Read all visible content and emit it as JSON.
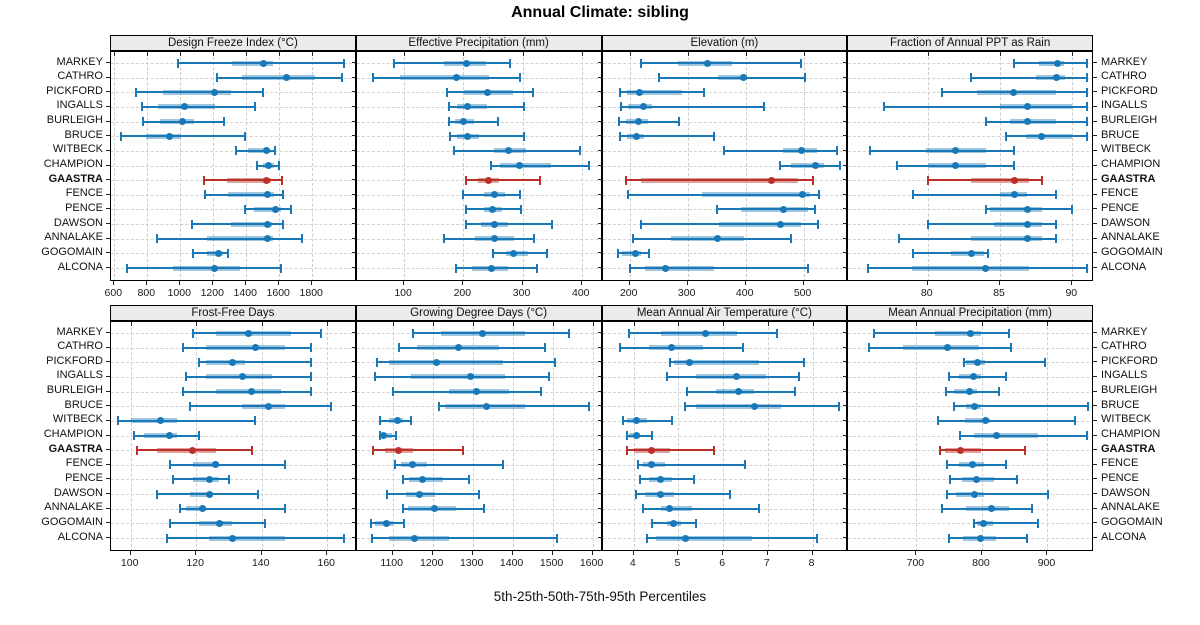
{
  "title": "Annual Climate: sibling",
  "caption": "5th-25th-50th-75th-95th Percentiles",
  "colors": {
    "series": "#1878b8",
    "series_band": "rgba(24,120,184,0.42)",
    "highlight": "#bb3029",
    "highlight_band": "rgba(187,48,41,0.45)",
    "strip_bg": "#ebebeb",
    "grid": "#cdcdcd"
  },
  "chart_data": {
    "type": "percentile-dotplot",
    "percentiles": [
      5,
      25,
      50,
      75,
      95
    ],
    "legend_position": "none",
    "grid": "on",
    "stations": [
      "MARKEY",
      "CATHRO",
      "PICKFORD",
      "INGALLS",
      "BURLEIGH",
      "BRUCE",
      "WITBECK",
      "CHAMPION",
      "GAASTRA",
      "FENCE",
      "PENCE",
      "DAWSON",
      "ANNALAKE",
      "GOGOMAIN",
      "ALCONA"
    ],
    "highlight_station": "GAASTRA",
    "panels": [
      {
        "title": "Design Freeze Index (°C)",
        "xlim": [
          580,
          2070
        ],
        "ticks": [
          600,
          800,
          1000,
          1200,
          1400,
          1600,
          1800
        ],
        "values": {
          "MARKEY": [
            985,
            1315,
            1505,
            1560,
            1990
          ],
          "CATHRO": [
            1220,
            1375,
            1645,
            1815,
            1980
          ],
          "PICKFORD": [
            730,
            895,
            1210,
            1305,
            1500
          ],
          "INGALLS": [
            765,
            865,
            1025,
            1210,
            1455
          ],
          "BURLEIGH": [
            775,
            875,
            1015,
            1085,
            1265
          ],
          "BRUCE": [
            640,
            790,
            935,
            1005,
            1390
          ],
          "WITBECK": [
            1340,
            1410,
            1520,
            1545,
            1575
          ],
          "CHAMPION": [
            1465,
            1500,
            1535,
            1570,
            1600
          ],
          "GAASTRA": [
            1145,
            1285,
            1520,
            1550,
            1615
          ],
          "FENCE": [
            1150,
            1290,
            1530,
            1570,
            1620
          ],
          "PENCE": [
            1390,
            1445,
            1575,
            1610,
            1670
          ],
          "DAWSON": [
            1070,
            1310,
            1530,
            1555,
            1620
          ],
          "ANNALAKE": [
            860,
            1165,
            1530,
            1565,
            1740
          ],
          "GOGOMAIN": [
            1080,
            1165,
            1230,
            1260,
            1290
          ],
          "ALCONA": [
            680,
            955,
            1210,
            1365,
            1610
          ]
        }
      },
      {
        "title": "Effective Precipitation (mm)",
        "xlim": [
          20,
          435
        ],
        "ticks": [
          100,
          200,
          300,
          400
        ],
        "values": {
          "MARKEY": [
            83,
            167,
            205,
            239,
            279
          ],
          "CATHRO": [
            47,
            93,
            188,
            243,
            296
          ],
          "PICKFORD": [
            172,
            201,
            241,
            284,
            318
          ],
          "INGALLS": [
            175,
            190,
            207,
            240,
            302
          ],
          "BURLEIGH": [
            175,
            186,
            200,
            218,
            258
          ],
          "BRUCE": [
            177,
            190,
            207,
            226,
            302
          ],
          "WITBECK": [
            184,
            251,
            276,
            306,
            397
          ],
          "CHAMPION": [
            247,
            262,
            294,
            348,
            413
          ],
          "GAASTRA": [
            205,
            225,
            243,
            260,
            330
          ],
          "FENCE": [
            200,
            235,
            252,
            270,
            295
          ],
          "PENCE": [
            205,
            235,
            250,
            265,
            298
          ],
          "DAWSON": [
            205,
            230,
            252,
            275,
            350
          ],
          "ANNALAKE": [
            168,
            220,
            252,
            285,
            320
          ],
          "GOGOMAIN": [
            250,
            272,
            285,
            310,
            342
          ],
          "ALCONA": [
            188,
            215,
            247,
            275,
            325
          ]
        }
      },
      {
        "title": "Elevation (m)",
        "xlim": [
          153,
          577
        ],
        "ticks": [
          200,
          300,
          400,
          500
        ],
        "values": {
          "MARKEY": [
            219,
            284,
            334,
            376,
            495
          ],
          "CATHRO": [
            251,
            352,
            396,
            403,
            503
          ],
          "PICKFORD": [
            184,
            195,
            216,
            290,
            328
          ],
          "INGALLS": [
            185,
            197,
            223,
            238,
            431
          ],
          "BURLEIGH": [
            181,
            194,
            215,
            232,
            285
          ],
          "BRUCE": [
            184,
            195,
            212,
            224,
            345
          ],
          "WITBECK": [
            362,
            465,
            497,
            523,
            558
          ],
          "CHAMPION": [
            459,
            479,
            520,
            536,
            562
          ],
          "GAASTRA": [
            193,
            219,
            444,
            491,
            517
          ],
          "FENCE": [
            197,
            325,
            498,
            511,
            526
          ],
          "PENCE": [
            350,
            392,
            466,
            507,
            520
          ],
          "DAWSON": [
            219,
            354,
            460,
            495,
            524
          ],
          "ANNALAKE": [
            205,
            271,
            352,
            398,
            478
          ],
          "GOGOMAIN": [
            180,
            187,
            210,
            220,
            234
          ],
          "ALCONA": [
            201,
            226,
            261,
            345,
            508
          ]
        }
      },
      {
        "title": "Fraction of Annual PPT as Rain",
        "xlim": [
          74.5,
          91.5
        ],
        "ticks": [
          80,
          85,
          90
        ],
        "values": {
          "MARKEY": [
            86,
            87.7,
            89,
            89.4,
            91
          ],
          "CATHRO": [
            83,
            87.5,
            88.9,
            89.5,
            91
          ],
          "PICKFORD": [
            81,
            83.4,
            85.9,
            88.9,
            91
          ],
          "INGALLS": [
            77,
            85,
            86.9,
            90,
            91
          ],
          "BURLEIGH": [
            84,
            85.7,
            86.9,
            88.9,
            91
          ],
          "BRUCE": [
            85.4,
            86.8,
            87.9,
            90,
            91
          ],
          "WITBECK": [
            76,
            79.9,
            81.9,
            84,
            86
          ],
          "CHAMPION": [
            77.9,
            80,
            81.9,
            84,
            86
          ],
          "GAASTRA": [
            80,
            83,
            86,
            87,
            87.9
          ],
          "FENCE": [
            79,
            85,
            86,
            86.9,
            88.9
          ],
          "PENCE": [
            84,
            84.3,
            86.9,
            87.9,
            90
          ],
          "DAWSON": [
            80,
            84.6,
            86.9,
            87.9,
            88.9
          ],
          "ANNALAKE": [
            78,
            83,
            86.9,
            87.9,
            88.9
          ],
          "GOGOMAIN": [
            79,
            81.6,
            83,
            83.9,
            84.2
          ],
          "ALCONA": [
            75.9,
            78.9,
            84,
            87,
            91
          ]
        }
      },
      {
        "title": "Frost-Free Days",
        "xlim": [
          94,
          169
        ],
        "ticks": [
          100,
          120,
          140,
          160
        ],
        "values": {
          "MARKEY": [
            119,
            126,
            136,
            149,
            158
          ],
          "CATHRO": [
            116,
            123,
            138,
            147,
            155
          ],
          "PICKFORD": [
            121,
            123,
            131,
            135,
            155
          ],
          "INGALLS": [
            117,
            123,
            134,
            143,
            155
          ],
          "BURLEIGH": [
            116,
            126,
            137,
            146,
            155
          ],
          "BRUCE": [
            118,
            134,
            142,
            147,
            161
          ],
          "WITBECK": [
            96,
            100,
            109,
            114,
            138
          ],
          "CHAMPION": [
            101,
            104,
            112,
            114,
            121
          ],
          "GAASTRA": [
            102,
            108,
            119,
            126,
            137
          ],
          "FENCE": [
            112,
            119,
            126,
            127,
            147
          ],
          "PENCE": [
            113,
            119,
            124,
            127,
            130
          ],
          "DAWSON": [
            108,
            118,
            124,
            125,
            139
          ],
          "ANNALAKE": [
            115,
            117,
            122,
            123,
            147
          ],
          "GOGOMAIN": [
            112,
            121,
            127,
            131,
            141
          ],
          "ALCONA": [
            111,
            124,
            131,
            147,
            165
          ]
        }
      },
      {
        "title": "Growing Degree Days (°C)",
        "xlim": [
          1010,
          1625
        ],
        "ticks": [
          1100,
          1200,
          1300,
          1400,
          1500,
          1600
        ],
        "values": {
          "MARKEY": [
            1150,
            1220,
            1325,
            1430,
            1540
          ],
          "CATHRO": [
            1115,
            1160,
            1265,
            1365,
            1480
          ],
          "PICKFORD": [
            1060,
            1090,
            1210,
            1375,
            1505
          ],
          "INGALLS": [
            1055,
            1145,
            1295,
            1380,
            1490
          ],
          "BURLEIGH": [
            1100,
            1240,
            1310,
            1390,
            1470
          ],
          "BRUCE": [
            1215,
            1230,
            1335,
            1430,
            1590
          ],
          "WITBECK": [
            1068,
            1090,
            1113,
            1125,
            1147
          ],
          "CHAMPION": [
            1067,
            1072,
            1078,
            1097,
            1108
          ],
          "GAASTRA": [
            1050,
            1080,
            1114,
            1150,
            1275
          ],
          "FENCE": [
            1105,
            1120,
            1150,
            1185,
            1375
          ],
          "PENCE": [
            1125,
            1140,
            1175,
            1225,
            1290
          ],
          "DAWSON": [
            1085,
            1133,
            1167,
            1207,
            1315
          ],
          "ANNALAKE": [
            1126,
            1139,
            1205,
            1258,
            1328
          ],
          "GOGOMAIN": [
            1045,
            1056,
            1084,
            1100,
            1128
          ],
          "ALCONA": [
            1048,
            1090,
            1155,
            1242,
            1510
          ]
        }
      },
      {
        "title": "Mean Annual Air Temperature (°C)",
        "xlim": [
          3.3,
          8.8
        ],
        "ticks": [
          4,
          5,
          6,
          7,
          8
        ],
        "values": {
          "MARKEY": [
            3.9,
            4.6,
            5.6,
            6.3,
            7.2
          ],
          "CATHRO": [
            3.7,
            4.35,
            4.85,
            5.55,
            6.45
          ],
          "PICKFORD": [
            4.8,
            4.9,
            5.25,
            6.8,
            7.8
          ],
          "INGALLS": [
            4.75,
            5.4,
            6.3,
            6.95,
            7.7
          ],
          "BURLEIGH": [
            5.2,
            5.85,
            6.35,
            6.7,
            7.6
          ],
          "BRUCE": [
            5.15,
            5.4,
            6.7,
            7.3,
            8.6
          ],
          "WITBECK": [
            3.75,
            3.85,
            4.05,
            4.3,
            4.85
          ],
          "CHAMPION": [
            3.85,
            3.9,
            4.05,
            4.15,
            4.4
          ],
          "GAASTRA": [
            3.85,
            4.0,
            4.4,
            4.8,
            5.8
          ],
          "FENCE": [
            4.1,
            4.2,
            4.4,
            4.7,
            6.5
          ],
          "PENCE": [
            4.15,
            4.35,
            4.6,
            4.85,
            5.35
          ],
          "DAWSON": [
            4.05,
            4.25,
            4.6,
            4.9,
            6.15
          ],
          "ANNALAKE": [
            4.2,
            4.6,
            4.8,
            5.3,
            6.8
          ],
          "GOGOMAIN": [
            4.4,
            4.75,
            4.9,
            5.05,
            5.4
          ],
          "ALCONA": [
            4.3,
            4.5,
            5.15,
            6.65,
            8.1
          ]
        }
      },
      {
        "title": "Mean Annual Precipitation (mm)",
        "xlim": [
          596,
          971
        ],
        "ticks": [
          700,
          800,
          900
        ],
        "values": {
          "MARKEY": [
            635,
            728,
            783,
            799,
            841
          ],
          "CATHRO": [
            627,
            679,
            747,
            796,
            845
          ],
          "PICKFORD": [
            772,
            776,
            793,
            804,
            896
          ],
          "INGALLS": [
            749,
            765,
            787,
            799,
            837
          ],
          "BURLEIGH": [
            745,
            757,
            781,
            793,
            826
          ],
          "BRUCE": [
            758,
            775,
            789,
            799,
            962
          ],
          "WITBECK": [
            733,
            774,
            806,
            812,
            942
          ],
          "CHAMPION": [
            766,
            788,
            822,
            886,
            960
          ],
          "GAASTRA": [
            736,
            743,
            767,
            798,
            865
          ],
          "FENCE": [
            747,
            765,
            785,
            803,
            836
          ],
          "PENCE": [
            752,
            770,
            791,
            818,
            854
          ],
          "DAWSON": [
            747,
            760,
            789,
            803,
            901
          ],
          "ANNALAKE": [
            739,
            776,
            815,
            841,
            877
          ],
          "GOGOMAIN": [
            788,
            793,
            803,
            817,
            886
          ],
          "ALCONA": [
            749,
            771,
            798,
            822,
            868
          ]
        }
      }
    ]
  }
}
